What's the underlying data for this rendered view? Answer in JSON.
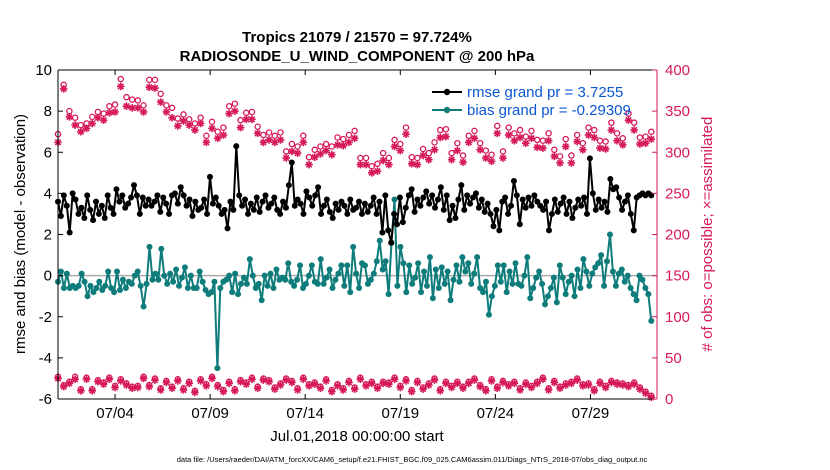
{
  "chart_data": {
    "type": "line",
    "title": "Tropics 21079 / 21570 = 97.724%",
    "subtitle": "RADIOSONDE_U_WIND_COMPONENT @ 200 hPa",
    "xlabel": "Jul.01,2018 00:00:00 start",
    "ylabel_left": "rmse and bias (model - observation)",
    "ylabel_right": "# of obs: o=possible; ×=assimilated",
    "xlim": [
      0,
      31.5
    ],
    "ylim_left": [
      -6,
      10
    ],
    "ylim_right": [
      0,
      400
    ],
    "x_ticks": [
      {
        "x": 3,
        "label": "07/04"
      },
      {
        "x": 8,
        "label": "07/09"
      },
      {
        "x": 13,
        "label": "07/14"
      },
      {
        "x": 18,
        "label": "07/19"
      },
      {
        "x": 23,
        "label": "07/24"
      },
      {
        "x": 28,
        "label": "07/29"
      }
    ],
    "y_ticks_left": [
      "-6",
      "-4",
      "-2",
      "0",
      "2",
      "4",
      "6",
      "8",
      "10"
    ],
    "y_ticks_right": [
      "0",
      "50",
      "100",
      "150",
      "200",
      "250",
      "300",
      "350",
      "400"
    ],
    "colors": {
      "rmse": "#000000",
      "bias": "#0e7c7b",
      "obs": "#d6195a",
      "legend_text": "#0b57d0",
      "zero_line": "#aaaaaa"
    },
    "legend": [
      {
        "name": "rmse grand pr = 3.7255",
        "color": "#000000"
      },
      {
        "name": "bias grand pr = -0.29309",
        "color": "#0e7c7b"
      }
    ],
    "rmse_values": [
      3.6,
      2.9,
      3.9,
      3.4,
      2.1,
      4.0,
      3.7,
      3.0,
      3.3,
      2.8,
      3.9,
      3.2,
      2.7,
      3.6,
      3.0,
      3.4,
      2.8,
      3.9,
      3.3,
      3.0,
      4.2,
      3.6,
      3.9,
      3.3,
      3.5,
      3.8,
      4.4,
      3.9,
      3.0,
      3.8,
      3.4,
      3.7,
      3.4,
      3.6,
      3.9,
      3.1,
      3.8,
      3.5,
      3.0,
      3.9,
      4.0,
      3.5,
      4.3,
      3.9,
      3.4,
      3.7,
      2.9,
      3.6,
      3.2,
      3.3,
      3.7,
      3.0,
      4.8,
      3.5,
      3.8,
      3.4,
      3.0,
      3.2,
      2.3,
      3.6,
      3.2,
      6.3,
      3.9,
      3.4,
      3.7,
      3.0,
      3.5,
      3.2,
      3.8,
      3.1,
      3.6,
      3.9,
      3.3,
      3.5,
      3.8,
      3.2,
      3.0,
      3.6,
      3.3,
      4.4,
      5.5,
      3.4,
      3.7,
      3.5,
      3.0,
      4.1,
      3.8,
      3.4,
      3.9,
      4.3,
      3.0,
      3.4,
      3.7,
      3.1,
      2.8,
      3.5,
      3.2,
      3.6,
      3.4,
      3.0,
      3.7,
      3.2,
      3.3,
      3.6,
      3.0,
      3.5,
      3.1,
      3.4,
      3.8,
      3.0,
      3.6,
      2.1,
      3.9,
      2.2,
      1.6,
      3.0,
      2.5,
      3.8,
      2.6,
      3.3,
      3.9,
      4.2,
      3.1,
      3.7,
      3.4,
      3.8,
      4.1,
      3.5,
      3.9,
      3.3,
      3.7,
      4.3,
      3.2,
      3.9,
      2.7,
      3.4,
      2.8,
      3.7,
      4.4,
      3.2,
      3.9,
      3.5,
      3.8,
      4.0,
      3.3,
      3.7,
      3.1,
      3.5,
      3.0,
      2.4,
      3.2,
      2.2,
      3.6,
      3.8,
      3.0,
      3.4,
      4.6,
      3.9,
      2.5,
      3.7,
      3.3,
      3.8,
      3.4,
      3.9,
      3.6,
      3.4,
      3.2,
      3.6,
      2.2,
      3.0,
      3.7,
      3.1,
      3.5,
      3.8,
      3.0,
      3.6,
      2.8,
      3.3,
      3.7,
      3.4,
      3.8,
      3.0,
      5.7,
      4.0,
      3.2,
      3.7,
      3.3,
      3.6,
      3.1,
      4.7,
      4.2,
      4.3,
      3.8,
      3.2,
      3.6,
      3.9,
      3.0,
      2.2,
      3.8,
      3.9,
      4.0,
      3.9,
      4.0,
      3.9
    ],
    "bias_values": [
      -0.3,
      0.2,
      -0.6,
      0.1,
      -0.6,
      -0.5,
      -0.6,
      -0.5,
      0.1,
      -0.3,
      -1.0,
      -0.5,
      -0.8,
      -0.6,
      -0.3,
      -0.7,
      -0.5,
      0.2,
      -0.6,
      -0.8,
      0.2,
      -0.7,
      -0.2,
      -0.6,
      -0.3,
      -0.4,
      0.0,
      0.2,
      -0.5,
      -1.5,
      -0.4,
      1.4,
      -0.2,
      0.1,
      -0.2,
      1.3,
      0.0,
      -0.4,
      0.1,
      -0.3,
      0.3,
      -0.5,
      -0.1,
      0.4,
      -0.6,
      0.0,
      -0.6,
      -0.6,
      0.2,
      -0.3,
      -0.7,
      -0.9,
      -0.8,
      -0.3,
      -4.5,
      -0.6,
      -0.3,
      -0.2,
      0.0,
      -0.8,
      0.1,
      -0.9,
      -0.4,
      -0.1,
      -0.4,
      0.8,
      0.0,
      -0.6,
      -0.4,
      -1.2,
      0.0,
      -0.5,
      0.1,
      -0.6,
      0.3,
      -0.2,
      -0.1,
      -0.2,
      0.6,
      -0.3,
      -0.5,
      -0.2,
      0.5,
      -0.6,
      -0.4,
      0.0,
      0.5,
      -0.3,
      -0.4,
      0.8,
      -0.4,
      -0.1,
      0.3,
      -0.6,
      -0.2,
      0.1,
      0.5,
      -0.5,
      0.5,
      -0.8,
      1.4,
      0.1,
      -0.6,
      0.6,
      0.5,
      -0.4,
      -0.2,
      0.1,
      0.7,
      1.7,
      0.3,
      0.7,
      -0.9,
      1.6,
      3.7,
      -0.5,
      1.4,
      0.6,
      -0.8,
      0.5,
      -0.4,
      -0.1,
      0.6,
      -0.8,
      0.2,
      -0.5,
      0.9,
      -1.1,
      0.3,
      -0.6,
      0.4,
      -0.4,
      0.2,
      -1.2,
      -0.2,
      0.5,
      -0.3,
      0.9,
      0.2,
      0.6,
      -0.4,
      0.1,
      0.9,
      -0.6,
      -0.8,
      -0.3,
      -1.9,
      -1.0,
      -0.5,
      0.5,
      -0.3,
      0.5,
      -0.8,
      0.2,
      -0.4,
      0.6,
      -0.4,
      -0.5,
      0.0,
      0.9,
      -1.1,
      -0.6,
      -0.1,
      0.2,
      -0.4,
      -1.4,
      -1.0,
      -0.6,
      -0.1,
      -1.3,
      0.5,
      -0.1,
      -0.9,
      -0.3,
      0.0,
      -1.0,
      0.3,
      -0.6,
      0.8,
      0.2,
      -0.5,
      0.1,
      0.4,
      0.6,
      1.0,
      -0.5,
      0.7,
      2.0,
      0.2,
      -0.5,
      0.1,
      0.3,
      -0.3,
      0.0,
      -0.6,
      -0.9,
      -1.2,
      0.0,
      -0.2,
      -0.6,
      -0.9,
      -2.2
    ],
    "obs_upper_possible": [
      322,
      382,
      350,
      342,
      333,
      335,
      343,
      349,
      347,
      356,
      358,
      389,
      367,
      364,
      363,
      357,
      388,
      388,
      371,
      357,
      354,
      341,
      346,
      340,
      335,
      342,
      320,
      337,
      325,
      330,
      356,
      359,
      339,
      348,
      349,
      331,
      321,
      324,
      320,
      324,
      301,
      310,
      307,
      320,
      294,
      303,
      307,
      310,
      307,
      318,
      316,
      321,
      326,
      293,
      293,
      283,
      286,
      299,
      293,
      315,
      310,
      330,
      294,
      293,
      304,
      299,
      312,
      327,
      328,
      299,
      311,
      296,
      320,
      326,
      311,
      302,
      297,
      332,
      301,
      330,
      323,
      327,
      319,
      326,
      315,
      314,
      323,
      303,
      295,
      316,
      296,
      321,
      311,
      330,
      327,
      314,
      313,
      336,
      323,
      317,
      347,
      336,
      318,
      319,
      325
    ],
    "obs_upper_assim": [
      312,
      377,
      343,
      333,
      325,
      329,
      335,
      342,
      339,
      348,
      349,
      380,
      356,
      354,
      354,
      349,
      379,
      378,
      361,
      349,
      342,
      332,
      338,
      333,
      327,
      335,
      312,
      329,
      317,
      321,
      347,
      350,
      330,
      340,
      340,
      323,
      312,
      315,
      312,
      315,
      293,
      301,
      299,
      312,
      285,
      294,
      298,
      302,
      297,
      309,
      308,
      312,
      317,
      285,
      285,
      275,
      277,
      290,
      285,
      307,
      302,
      322,
      286,
      285,
      296,
      291,
      303,
      318,
      319,
      291,
      302,
      288,
      312,
      317,
      303,
      293,
      289,
      323,
      293,
      321,
      314,
      318,
      311,
      317,
      306,
      305,
      314,
      295,
      287,
      307,
      287,
      313,
      303,
      321,
      318,
      305,
      304,
      327,
      314,
      309,
      339,
      327,
      310,
      311,
      316
    ],
    "obs_lower_possible": [
      27,
      17,
      21,
      27,
      12,
      26,
      12,
      23,
      20,
      26,
      16,
      24,
      19,
      15,
      16,
      27,
      17,
      25,
      13,
      22,
      15,
      24,
      13,
      21,
      10,
      24,
      18,
      27,
      17,
      11,
      21,
      12,
      23,
      20,
      26,
      15,
      25,
      23,
      14,
      19,
      25,
      22,
      13,
      26,
      18,
      20,
      15,
      24,
      11,
      18,
      13,
      22,
      14,
      26,
      18,
      21,
      15,
      21,
      20,
      26,
      16,
      24,
      11,
      22,
      14,
      19,
      25,
      12,
      21,
      16,
      21,
      15,
      21,
      25,
      17,
      12,
      24,
      15,
      22,
      18,
      21,
      13,
      20,
      16,
      21,
      26,
      13,
      22,
      15,
      19,
      21,
      25,
      18,
      19,
      12,
      21,
      16,
      22,
      20,
      19,
      17,
      20,
      14,
      9,
      4
    ],
    "obs_lower_assim": [
      25,
      15,
      19,
      24,
      10,
      24,
      10,
      21,
      18,
      24,
      14,
      22,
      17,
      13,
      14,
      25,
      15,
      23,
      11,
      20,
      13,
      22,
      11,
      19,
      8,
      22,
      16,
      25,
      15,
      9,
      19,
      10,
      21,
      18,
      24,
      13,
      23,
      21,
      12,
      17,
      23,
      20,
      11,
      24,
      16,
      18,
      13,
      22,
      9,
      16,
      11,
      20,
      12,
      24,
      16,
      19,
      13,
      19,
      18,
      24,
      14,
      22,
      9,
      20,
      12,
      17,
      23,
      10,
      19,
      14,
      19,
      13,
      19,
      23,
      15,
      10,
      22,
      13,
      20,
      16,
      19,
      11,
      18,
      14,
      19,
      24,
      11,
      20,
      13,
      17,
      19,
      23,
      16,
      17,
      10,
      19,
      14,
      20,
      18,
      17,
      15,
      18,
      12,
      7,
      2
    ]
  },
  "footer": "data file: /Users/raeder/DAI/ATM_forcXX/CAM6_setup/f.e21.FHIST_BGC.f09_025.CAM6assim.011/Diags_NTrS_2018-07/obs_diag_output.nc"
}
